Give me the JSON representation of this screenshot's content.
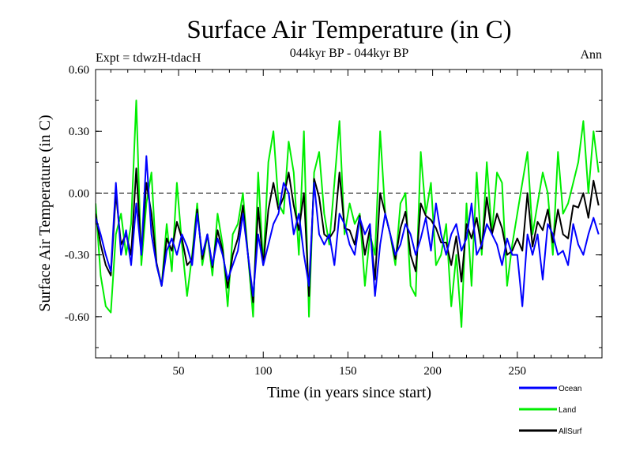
{
  "chart_data": {
    "type": "line",
    "title": "Surface Air Temperature (in C)",
    "subtitle": "044kyr BP - 044kyr BP",
    "annotation_left": "Expt = tdwzH-tdacH",
    "annotation_right": "Ann",
    "xlabel": "Time (in years since start)",
    "ylabel": "Surface Air Temperature (in C)",
    "xlim": [
      1,
      300
    ],
    "ylim": [
      -0.8,
      0.6
    ],
    "xticks": [
      50,
      100,
      150,
      200,
      250
    ],
    "xtick_labels": [
      "50",
      "100",
      "150",
      "200",
      "250"
    ],
    "yticks": [
      0.6,
      0.3,
      0.0,
      -0.3,
      -0.6
    ],
    "ytick_labels": [
      "0.60",
      "0.30",
      "0.00",
      "-0.30",
      "-0.60"
    ],
    "reference_line": {
      "y": 0.0,
      "style": "dashed"
    },
    "legend_position": "bottom-right",
    "x_sampling": {
      "start": 1,
      "step": 3
    },
    "series": [
      {
        "name": "Ocean",
        "color": "#0000ff",
        "values": [
          -0.12,
          -0.2,
          -0.3,
          -0.38,
          0.05,
          -0.3,
          -0.18,
          -0.35,
          -0.05,
          -0.3,
          0.18,
          -0.2,
          -0.35,
          -0.45,
          -0.28,
          -0.22,
          -0.3,
          -0.2,
          -0.26,
          -0.35,
          -0.1,
          -0.3,
          -0.2,
          -0.35,
          -0.22,
          -0.3,
          -0.42,
          -0.35,
          -0.28,
          -0.1,
          -0.3,
          -0.5,
          -0.2,
          -0.35,
          -0.25,
          -0.15,
          -0.1,
          0.05,
          0.0,
          -0.2,
          -0.1,
          -0.3,
          -0.45,
          0.05,
          -0.2,
          -0.25,
          -0.2,
          -0.35,
          -0.1,
          -0.15,
          -0.25,
          -0.3,
          -0.12,
          -0.2,
          -0.15,
          -0.5,
          -0.25,
          -0.1,
          -0.2,
          -0.3,
          -0.25,
          -0.15,
          -0.2,
          -0.3,
          -0.22,
          -0.12,
          -0.28,
          -0.05,
          -0.2,
          -0.3,
          -0.2,
          -0.15,
          -0.28,
          -0.22,
          -0.05,
          -0.3,
          -0.25,
          -0.15,
          -0.2,
          -0.25,
          -0.35,
          -0.22,
          -0.3,
          -0.3,
          -0.55,
          -0.2,
          -0.3,
          -0.2,
          -0.42,
          -0.15,
          -0.2,
          -0.3,
          -0.28,
          -0.35,
          -0.15,
          -0.25,
          -0.3,
          -0.2,
          -0.12,
          -0.2
        ]
      },
      {
        "name": "Land",
        "color": "#00ee00",
        "values": [
          -0.05,
          -0.4,
          -0.55,
          -0.58,
          -0.2,
          -0.1,
          -0.3,
          -0.15,
          0.45,
          -0.35,
          -0.05,
          0.1,
          -0.35,
          -0.45,
          -0.15,
          -0.38,
          0.05,
          -0.25,
          -0.5,
          -0.3,
          -0.05,
          -0.35,
          -0.2,
          -0.4,
          -0.1,
          -0.25,
          -0.55,
          -0.2,
          -0.15,
          0.0,
          -0.3,
          -0.6,
          0.1,
          -0.35,
          0.15,
          0.3,
          -0.05,
          -0.1,
          0.25,
          0.1,
          -0.3,
          0.3,
          -0.6,
          0.1,
          0.2,
          -0.1,
          -0.25,
          0.05,
          0.35,
          -0.2,
          -0.05,
          -0.15,
          -0.1,
          -0.45,
          -0.2,
          -0.3,
          0.3,
          -0.1,
          -0.2,
          -0.35,
          -0.05,
          0.0,
          -0.45,
          -0.5,
          0.2,
          -0.1,
          0.05,
          -0.35,
          -0.3,
          -0.15,
          -0.55,
          -0.3,
          -0.65,
          -0.05,
          -0.45,
          0.1,
          -0.3,
          0.15,
          -0.2,
          0.1,
          0.05,
          -0.45,
          -0.25,
          -0.1,
          0.05,
          0.2,
          -0.2,
          -0.05,
          0.1,
          0.0,
          -0.3,
          0.2,
          -0.1,
          -0.05,
          0.05,
          0.15,
          0.35,
          0.0,
          0.3,
          0.1
        ]
      },
      {
        "name": "AllSurf",
        "color": "#000000",
        "values": [
          -0.1,
          -0.25,
          -0.35,
          -0.4,
          0.0,
          -0.25,
          -0.2,
          -0.3,
          0.12,
          -0.3,
          0.05,
          -0.1,
          -0.34,
          -0.45,
          -0.22,
          -0.28,
          -0.14,
          -0.22,
          -0.35,
          -0.32,
          -0.08,
          -0.32,
          -0.2,
          -0.36,
          -0.18,
          -0.28,
          -0.46,
          -0.3,
          -0.22,
          -0.06,
          -0.3,
          -0.53,
          -0.07,
          -0.35,
          -0.08,
          0.05,
          -0.08,
          -0.02,
          0.1,
          -0.06,
          -0.18,
          0.0,
          -0.5,
          0.07,
          -0.02,
          -0.2,
          -0.22,
          -0.18,
          0.1,
          -0.17,
          -0.18,
          -0.25,
          -0.11,
          -0.3,
          -0.17,
          -0.42,
          0.0,
          -0.1,
          -0.2,
          -0.32,
          -0.17,
          -0.09,
          -0.3,
          -0.38,
          -0.05,
          -0.11,
          -0.13,
          -0.17,
          -0.24,
          -0.24,
          -0.35,
          -0.21,
          -0.43,
          -0.15,
          -0.22,
          -0.12,
          -0.27,
          -0.02,
          -0.2,
          -0.1,
          -0.17,
          -0.3,
          -0.28,
          -0.22,
          -0.28,
          0.0,
          -0.26,
          -0.14,
          -0.18,
          -0.08,
          -0.24,
          -0.08,
          -0.2,
          -0.22,
          -0.06,
          -0.07,
          0.0,
          -0.12,
          0.06,
          -0.06
        ]
      }
    ]
  }
}
